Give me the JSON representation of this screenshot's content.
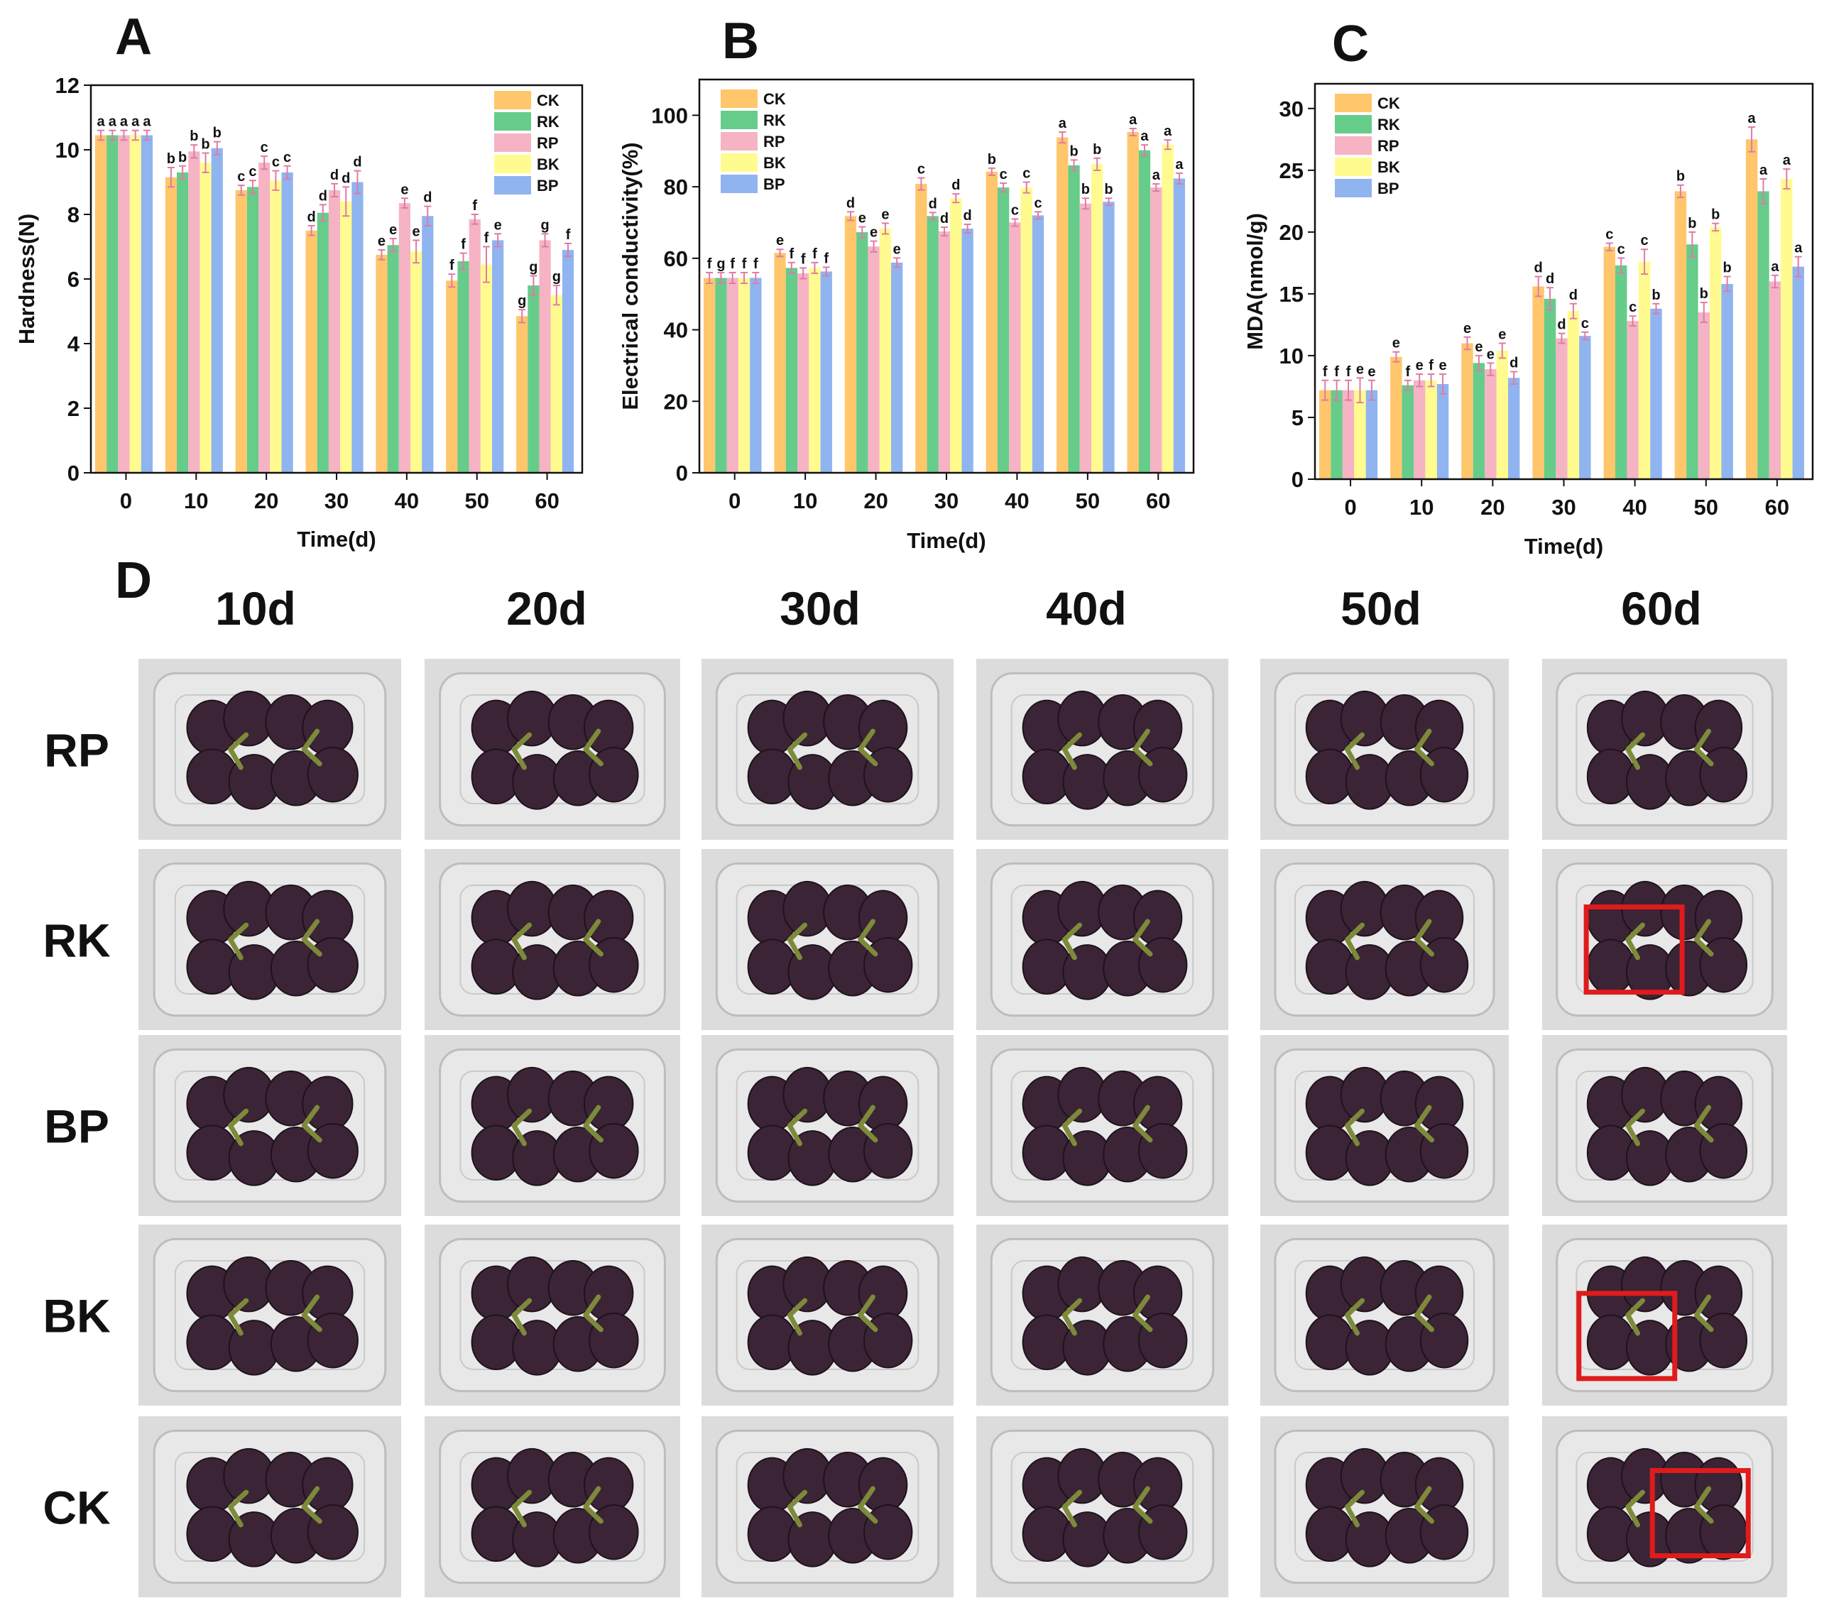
{
  "chart_data": [
    {
      "panel": "A",
      "type": "bar",
      "title": "",
      "xlabel": "Time(d)",
      "ylabel": "Hardness(N)",
      "ylim": [
        0,
        12
      ],
      "yticks": [
        0,
        2,
        4,
        6,
        8,
        10,
        12
      ],
      "categories": [
        "0",
        "10",
        "20",
        "30",
        "40",
        "50",
        "60"
      ],
      "legend_position": "top-right",
      "series": [
        {
          "name": "CK",
          "color": "#FFC66B",
          "values": [
            10.45,
            9.15,
            8.75,
            7.5,
            6.75,
            5.95,
            4.85
          ],
          "errors": [
            0.15,
            0.3,
            0.15,
            0.15,
            0.15,
            0.2,
            0.2
          ],
          "labels": [
            "a",
            "b",
            "c",
            "d",
            "e",
            "f",
            "g"
          ]
        },
        {
          "name": "RK",
          "color": "#66CC8A",
          "values": [
            10.45,
            9.3,
            8.85,
            8.05,
            7.05,
            6.55,
            5.8
          ],
          "errors": [
            0.15,
            0.2,
            0.2,
            0.25,
            0.2,
            0.25,
            0.3
          ],
          "labels": [
            "a",
            "b",
            "c",
            "d",
            "e",
            "f",
            "g"
          ]
        },
        {
          "name": "RP",
          "color": "#F5B3C4",
          "values": [
            10.45,
            9.95,
            9.6,
            8.75,
            8.35,
            7.85,
            7.2
          ],
          "errors": [
            0.15,
            0.2,
            0.2,
            0.2,
            0.15,
            0.15,
            0.2
          ],
          "labels": [
            "a",
            "b",
            "c",
            "d",
            "e",
            "f",
            "g"
          ]
        },
        {
          "name": "BK",
          "color": "#FFFB8F",
          "values": [
            10.45,
            9.6,
            9.05,
            8.4,
            6.85,
            6.45,
            5.5
          ],
          "errors": [
            0.15,
            0.3,
            0.3,
            0.45,
            0.35,
            0.55,
            0.3
          ],
          "labels": [
            "a",
            "b",
            "c",
            "d",
            "e",
            "f",
            "g"
          ]
        },
        {
          "name": "BP",
          "color": "#8FB4F0",
          "values": [
            10.45,
            10.05,
            9.3,
            9.0,
            7.95,
            7.2,
            6.9
          ],
          "errors": [
            0.15,
            0.2,
            0.2,
            0.35,
            0.3,
            0.2,
            0.2
          ],
          "labels": [
            "a",
            "b",
            "c",
            "d",
            "d",
            "e",
            "f"
          ]
        }
      ]
    },
    {
      "panel": "B",
      "type": "bar",
      "title": "",
      "xlabel": "Time(d)",
      "ylabel": "Electrical conductivity(%)",
      "ylim": [
        0,
        110
      ],
      "yticks": [
        0,
        20,
        40,
        60,
        80,
        100
      ],
      "categories": [
        "0",
        "10",
        "20",
        "30",
        "40",
        "50",
        "60"
      ],
      "legend_position": "top-left",
      "series": [
        {
          "name": "CK",
          "color": "#FFC66B",
          "values": [
            54.5,
            61.5,
            71.8,
            80.8,
            84.2,
            93.8,
            95.3
          ],
          "errors": [
            1.5,
            1.0,
            1.2,
            1.7,
            1.0,
            1.5,
            1.0
          ],
          "labels": [
            "f",
            "e",
            "d",
            "c",
            "b",
            "a",
            "a"
          ]
        },
        {
          "name": "RK",
          "color": "#66CC8A",
          "values": [
            54.5,
            57.3,
            67.3,
            71.8,
            79.8,
            86.0,
            90.2
          ],
          "errors": [
            1.5,
            1.5,
            1.5,
            1.0,
            1.2,
            1.5,
            1.5
          ],
          "labels": [
            "g",
            "f",
            "e",
            "d",
            "c",
            "b",
            "a"
          ]
        },
        {
          "name": "RP",
          "color": "#F5B3C4",
          "values": [
            54.5,
            55.8,
            63.3,
            67.5,
            70.0,
            75.3,
            79.8
          ],
          "errors": [
            1.5,
            1.5,
            1.5,
            1.2,
            1.0,
            1.5,
            1.0
          ],
          "labels": [
            "f",
            "f",
            "e",
            "d",
            "c",
            "b",
            "a"
          ]
        },
        {
          "name": "BK",
          "color": "#FFFB8F",
          "values": [
            54.5,
            57.3,
            68.3,
            76.8,
            79.8,
            86.3,
            91.8
          ],
          "errors": [
            1.5,
            1.5,
            1.5,
            1.2,
            1.5,
            1.7,
            1.3
          ],
          "labels": [
            "f",
            "f",
            "e",
            "d",
            "c",
            "b",
            "a"
          ]
        },
        {
          "name": "BP",
          "color": "#8FB4F0",
          "values": [
            54.5,
            56.3,
            58.8,
            68.3,
            72.0,
            75.8,
            82.3
          ],
          "errors": [
            1.5,
            1.2,
            1.3,
            1.2,
            1.0,
            1.0,
            1.5
          ],
          "labels": [
            "f",
            "f",
            "e",
            "d",
            "c",
            "b",
            "a"
          ]
        }
      ]
    },
    {
      "panel": "C",
      "type": "bar",
      "title": "",
      "xlabel": "Time(d)",
      "ylabel": "MDA(nmol/g)",
      "ylim": [
        0,
        32
      ],
      "yticks": [
        0,
        5,
        10,
        15,
        20,
        25,
        30
      ],
      "categories": [
        "0",
        "10",
        "20",
        "30",
        "40",
        "50",
        "60"
      ],
      "legend_position": "top-left",
      "series": [
        {
          "name": "CK",
          "color": "#FFC66B",
          "values": [
            7.2,
            9.9,
            11.0,
            15.6,
            18.8,
            23.3,
            27.5
          ],
          "errors": [
            0.8,
            0.4,
            0.5,
            0.8,
            0.3,
            0.5,
            1.0
          ],
          "labels": [
            "f",
            "e",
            "e",
            "d",
            "c",
            "b",
            "a"
          ]
        },
        {
          "name": "RK",
          "color": "#66CC8A",
          "values": [
            7.2,
            7.6,
            9.4,
            14.6,
            17.3,
            19.0,
            23.3
          ],
          "errors": [
            0.8,
            0.4,
            0.6,
            0.9,
            0.6,
            1.0,
            1.0
          ],
          "labels": [
            "f",
            "f",
            "e",
            "d",
            "c",
            "b",
            "a"
          ]
        },
        {
          "name": "RP",
          "color": "#F5B3C4",
          "values": [
            7.2,
            8.0,
            8.9,
            11.4,
            12.8,
            13.5,
            16.0
          ],
          "errors": [
            0.8,
            0.5,
            0.5,
            0.4,
            0.4,
            0.8,
            0.5
          ],
          "labels": [
            "f",
            "e",
            "e",
            "d",
            "c",
            "b",
            "a"
          ]
        },
        {
          "name": "BK",
          "color": "#FFFB8F",
          "values": [
            7.2,
            8.0,
            10.4,
            13.6,
            17.6,
            20.4,
            24.3
          ],
          "errors": [
            1.0,
            0.5,
            0.6,
            0.6,
            1.0,
            0.3,
            0.8
          ],
          "labels": [
            "e",
            "f",
            "e",
            "d",
            "c",
            "b",
            "a"
          ]
        },
        {
          "name": "BP",
          "color": "#8FB4F0",
          "values": [
            7.2,
            7.7,
            8.2,
            11.6,
            13.8,
            15.8,
            17.2
          ],
          "errors": [
            0.8,
            0.8,
            0.5,
            0.3,
            0.4,
            0.6,
            0.8
          ],
          "labels": [
            "e",
            "e",
            "d",
            "c",
            "b",
            "b",
            "a"
          ]
        }
      ]
    }
  ],
  "panel_labels": {
    "a": "A",
    "b": "B",
    "c": "C",
    "d": "D"
  },
  "photo_grid": {
    "days": [
      "10d",
      "20d",
      "30d",
      "40d",
      "50d",
      "60d"
    ],
    "rows": [
      "RP",
      "RK",
      "BP",
      "BK",
      "CK"
    ],
    "berry_color": "#3a2436",
    "stem_color": "#7d8a3a",
    "marker_color": "#e01b1b"
  }
}
